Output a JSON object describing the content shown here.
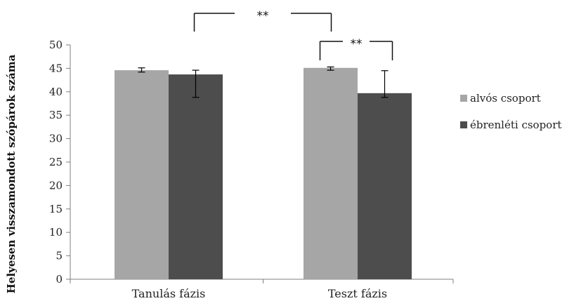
{
  "chart_data": {
    "type": "bar",
    "title": "",
    "xlabel": "",
    "ylabel": "Helyesen visszamondott szópárok száma",
    "categories": [
      "Tanulás fázis",
      "Teszt fázis"
    ],
    "ylim": [
      0,
      50
    ],
    "yticks": [
      0,
      5,
      10,
      15,
      20,
      25,
      30,
      35,
      40,
      45,
      50
    ],
    "grid": false,
    "legend_position": "right",
    "series": [
      {
        "name": "alvós csoport",
        "color": "#a6a6a6",
        "values": [
          44.6,
          45.1
        ],
        "error": [
          [
            44.2,
            45.1
          ],
          [
            44.6,
            45.3
          ]
        ]
      },
      {
        "name": "ébrenléti csoport",
        "color": "#4d4d4d",
        "values": [
          43.7,
          39.7
        ],
        "error": [
          [
            38.8,
            44.6
          ],
          [
            38.8,
            44.5
          ]
        ]
      }
    ],
    "annotations": [
      {
        "text": "**",
        "between": [
          "ébrenléti csoport|Tanulás fázis",
          "ébrenléti csoport|Teszt fázis"
        ]
      },
      {
        "text": "**",
        "between": [
          "alvós csoport|Teszt fázis",
          "ébrenléti csoport|Teszt fázis"
        ]
      }
    ]
  }
}
